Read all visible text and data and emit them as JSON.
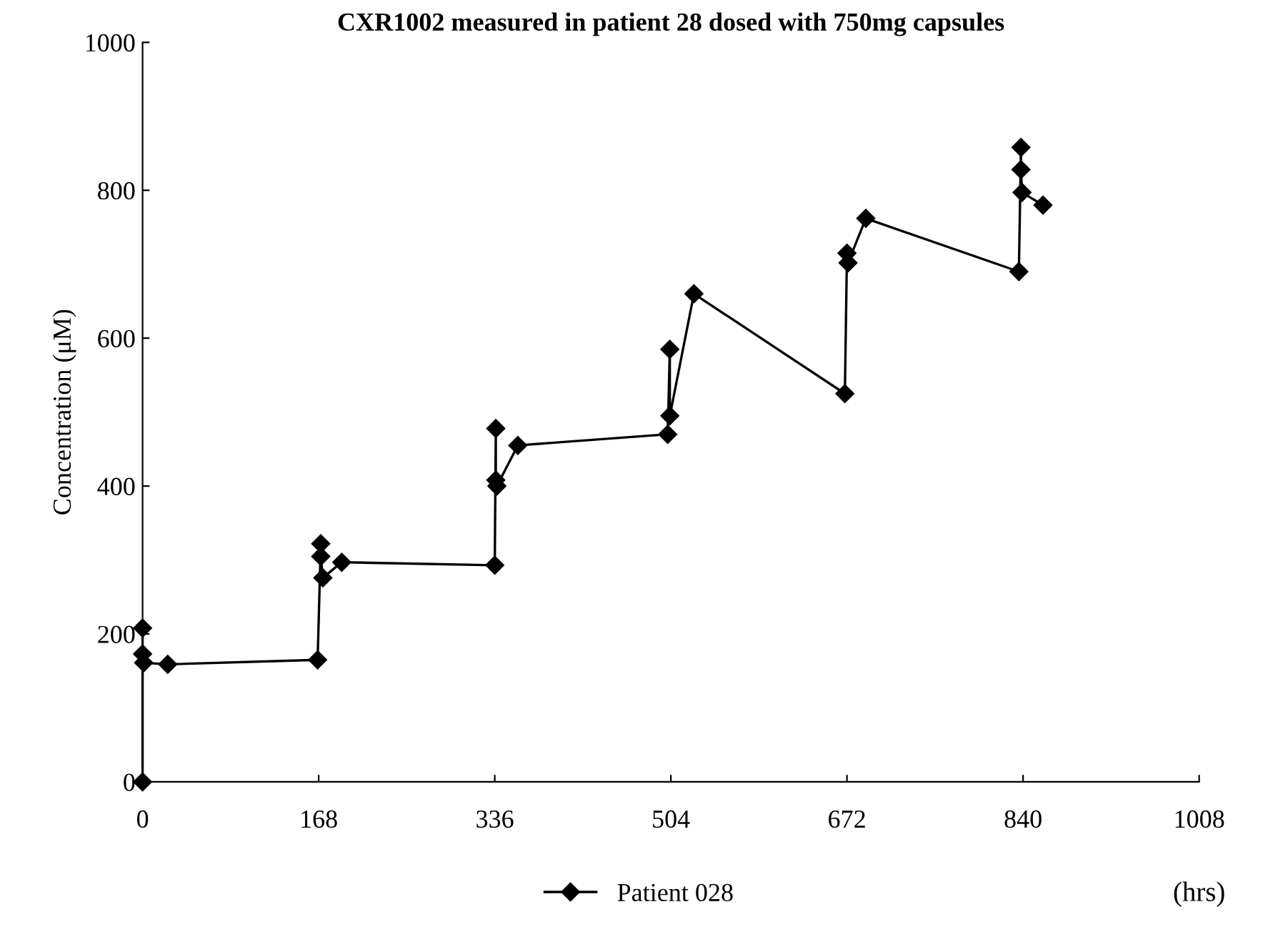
{
  "chart_data": {
    "type": "line",
    "title": "CXR1002 measured in patient 28 dosed with 750mg capsules",
    "xlabel": "(hrs)",
    "ylabel": "Concentration (μM)",
    "series": [
      {
        "name": "Patient 028",
        "color": "#000000",
        "x": [
          0,
          0,
          0,
          1,
          24,
          167,
          170,
          170,
          172,
          190,
          336,
          337,
          337,
          338,
          358,
          501,
          503,
          503,
          526,
          670,
          672,
          673,
          690,
          836,
          838,
          838,
          839,
          859
        ],
        "values": [
          0,
          208,
          173,
          161,
          159,
          165,
          322,
          305,
          276,
          297,
          293,
          478,
          408,
          400,
          455,
          470,
          585,
          495,
          660,
          525,
          715,
          702,
          762,
          690,
          858,
          828,
          797,
          780
        ]
      }
    ],
    "xlim": [
      0,
      1008
    ],
    "xticks": [
      0,
      168,
      336,
      504,
      672,
      840,
      1008
    ],
    "ylim": [
      0,
      1000
    ],
    "yticks": [
      0,
      200,
      400,
      600,
      800,
      1000
    ],
    "marker": "diamond",
    "line_style": "solid",
    "legend": "bottom",
    "grid": false
  }
}
